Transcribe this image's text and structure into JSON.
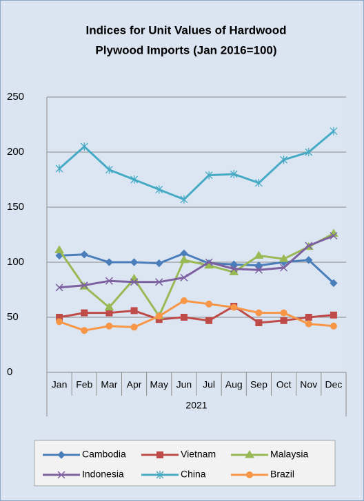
{
  "chart_data": {
    "type": "line",
    "title": [
      "Indices for Unit Values of Hardwood",
      "Plywood Imports (Jan 2016=100)"
    ],
    "categories": [
      "Jan",
      "Feb",
      "Mar",
      "Apr",
      "May",
      "Jun",
      "Jul",
      "Aug",
      "Sep",
      "Oct",
      "Nov",
      "Dec"
    ],
    "xlabel": "2021",
    "ylim": [
      0,
      250
    ],
    "yticks": [
      0,
      50,
      100,
      150,
      200,
      250
    ],
    "grid": true,
    "legend": "bottom",
    "series": [
      {
        "name": "Cambodia",
        "color": "#4a7ebb",
        "marker": "diamond",
        "values": [
          106,
          107,
          100,
          100,
          99,
          108,
          99,
          98,
          97,
          100,
          102,
          81
        ]
      },
      {
        "name": "Vietnam",
        "color": "#be4b48",
        "marker": "square",
        "values": [
          50,
          54,
          54,
          56,
          48,
          50,
          47,
          60,
          45,
          47,
          50,
          52
        ]
      },
      {
        "name": "Malaysia",
        "color": "#98b954",
        "marker": "triangle",
        "values": [
          111,
          78,
          59,
          85,
          51,
          102,
          97,
          91,
          106,
          103,
          114,
          126
        ]
      },
      {
        "name": "Indonesia",
        "color": "#7d60a0",
        "marker": "x",
        "values": [
          77,
          79,
          83,
          82,
          82,
          86,
          100,
          94,
          93,
          95,
          115,
          124
        ]
      },
      {
        "name": "China",
        "color": "#46aac5",
        "marker": "star",
        "values": [
          185,
          205,
          184,
          175,
          166,
          157,
          179,
          180,
          172,
          193,
          200,
          219
        ]
      },
      {
        "name": "Brazil",
        "color": "#f79646",
        "marker": "circle",
        "values": [
          46,
          38,
          42,
          41,
          51,
          65,
          62,
          59,
          54,
          54,
          44,
          42
        ]
      }
    ]
  }
}
